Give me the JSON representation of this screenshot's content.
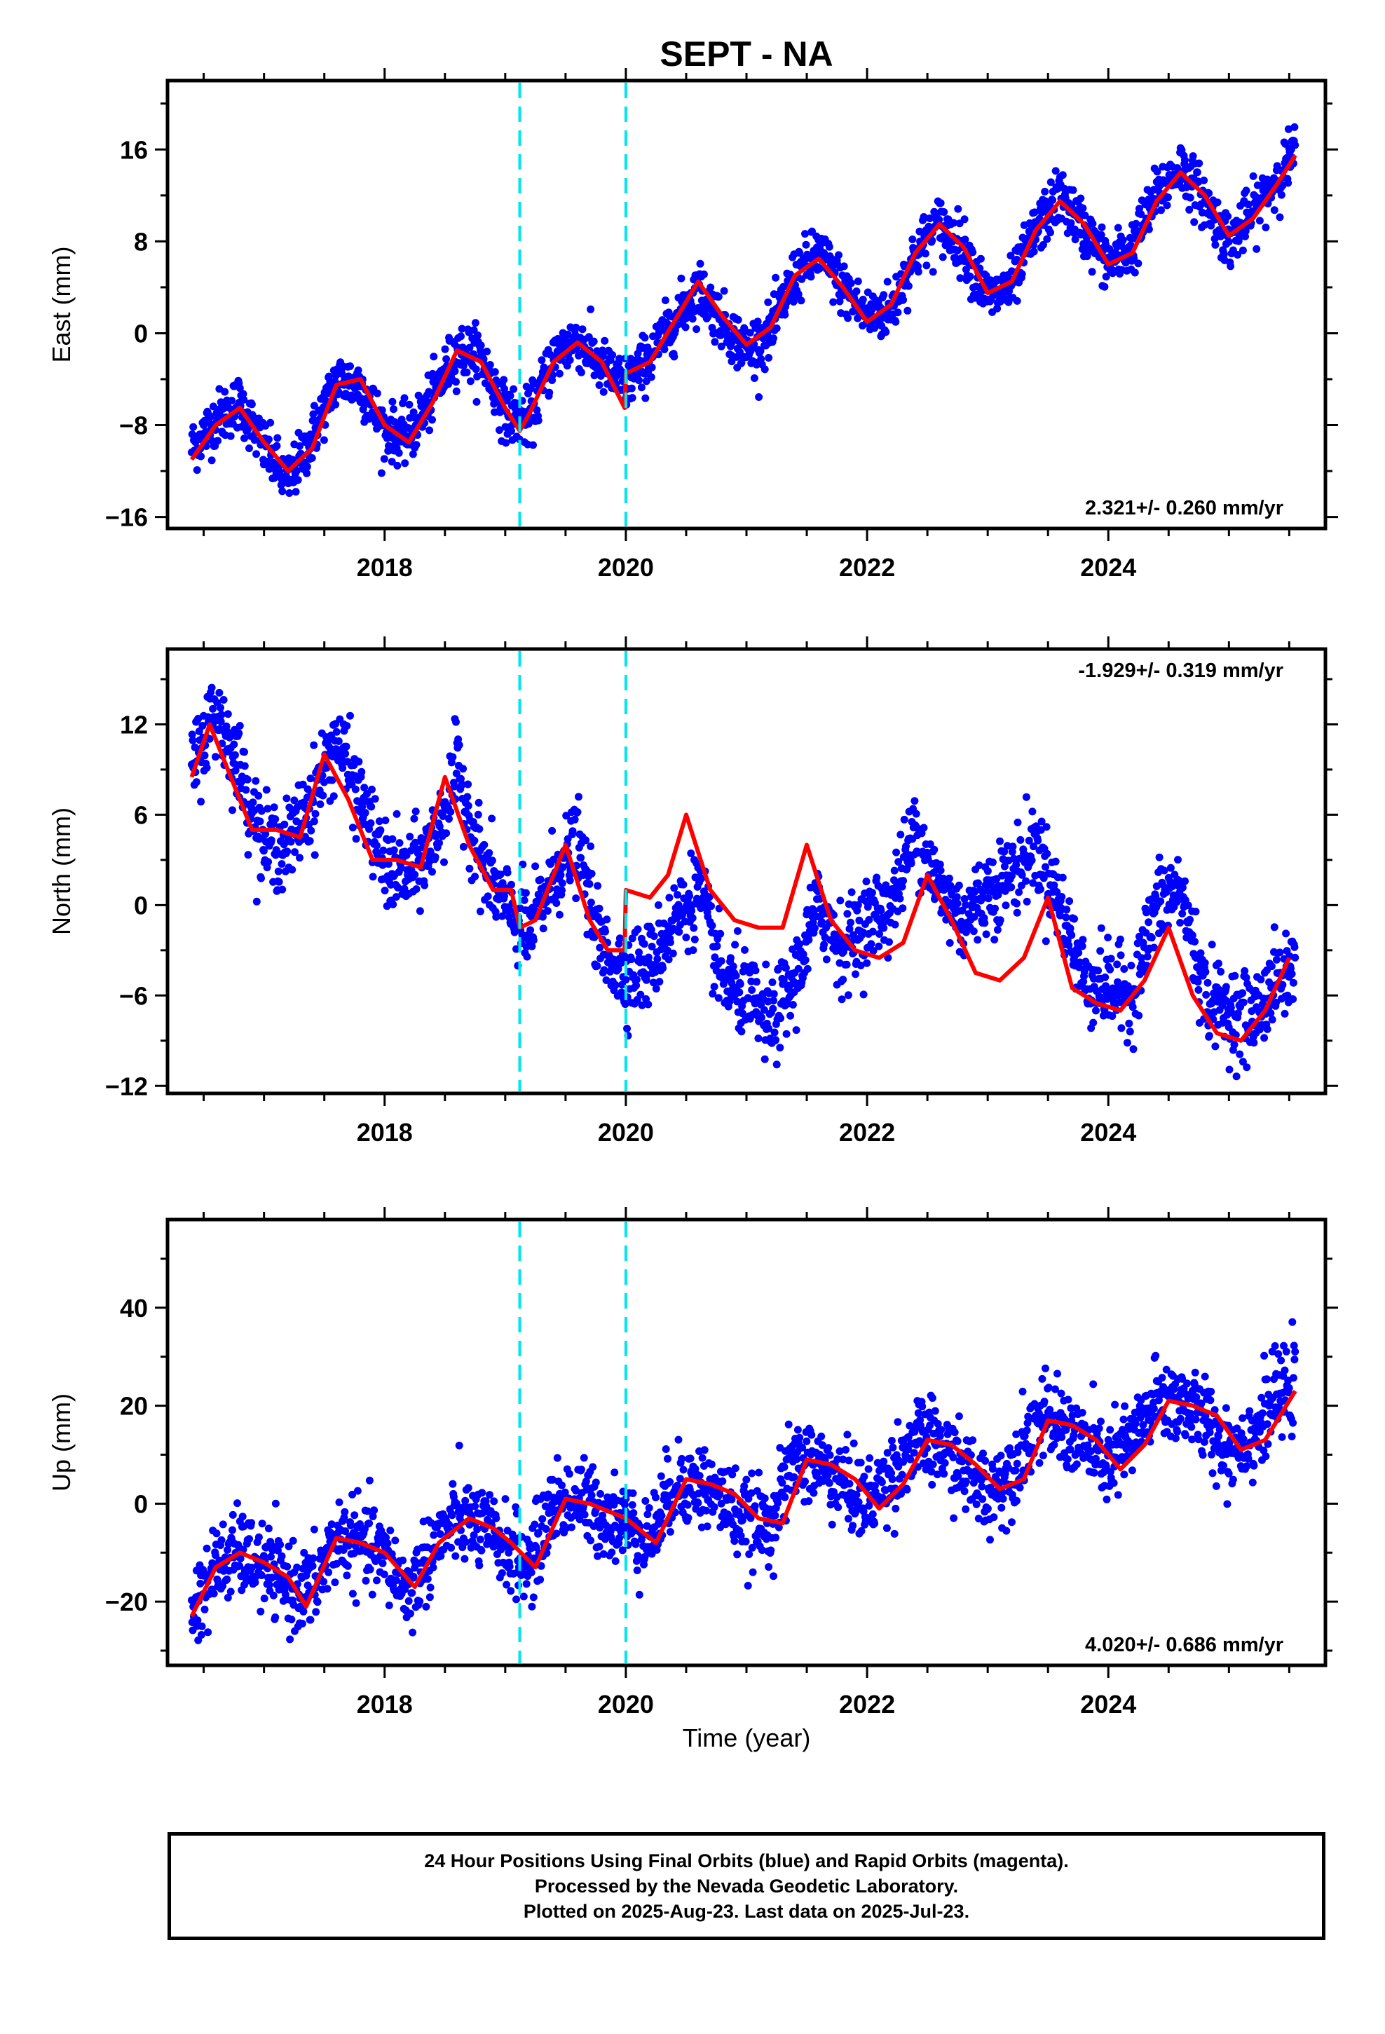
{
  "title": "SEPT - NA",
  "xlabel": "Time (year)",
  "caption": [
    "24 Hour Positions Using Final Orbits (blue) and Rapid Orbits (magenta).",
    "Processed by the Nevada Geodetic Laboratory.",
    "Plotted on 2025-Aug-23. Last data on 2025-Jul-23."
  ],
  "colors": {
    "data": "#0000ff",
    "model": "#ff0000",
    "events": "#00e5ee"
  },
  "chart_data": [
    {
      "type": "scatter",
      "ylabel": "East (mm)",
      "rate_label": "2.321+/- 0.260 mm/yr",
      "rate_position": "bottom-right",
      "xlim": [
        2016.2,
        2025.8
      ],
      "ylim": [
        -17,
        22
      ],
      "xticks": [
        2018,
        2020,
        2022,
        2024
      ],
      "yticks": [
        -16,
        -8,
        0,
        8,
        16
      ],
      "events": [
        2019.12,
        2020.0
      ],
      "model": {
        "x": [
          2016.4,
          2016.6,
          2016.8,
          2017.0,
          2017.2,
          2017.4,
          2017.6,
          2017.8,
          2018.0,
          2018.2,
          2018.4,
          2018.6,
          2018.8,
          2019.0,
          2019.12,
          2019.2,
          2019.4,
          2019.6,
          2019.8,
          2019.99,
          2020.0,
          2020.2,
          2020.4,
          2020.6,
          2020.8,
          2021.0,
          2021.2,
          2021.4,
          2021.6,
          2021.8,
          2022.0,
          2022.2,
          2022.4,
          2022.6,
          2022.8,
          2023.0,
          2023.2,
          2023.4,
          2023.6,
          2023.8,
          2024.0,
          2024.2,
          2024.4,
          2024.6,
          2024.8,
          2025.0,
          2025.2,
          2025.4,
          2025.55
        ],
        "y": [
          -11,
          -8,
          -6.5,
          -9.5,
          -12,
          -10,
          -4.5,
          -4,
          -8,
          -9.5,
          -6,
          -1.5,
          -2.5,
          -6.5,
          -8.5,
          -7,
          -2.5,
          -0.8,
          -2.5,
          -6.5,
          -3.5,
          -2.5,
          1,
          4.5,
          1.5,
          -1,
          0.5,
          5,
          6.5,
          4,
          1,
          2.5,
          7,
          9.5,
          7.5,
          3.5,
          4.5,
          9,
          11.5,
          9.5,
          6,
          7,
          11.5,
          14,
          12,
          8.5,
          10,
          13,
          15.5
        ]
      },
      "series": [
        {
          "name": "",
          "x": [
            2016.4,
            2016.6,
            2016.8,
            2017.0,
            2017.2,
            2017.4,
            2017.6,
            2017.8,
            2018.0,
            2018.2,
            2018.4,
            2018.6,
            2018.8,
            2019.0,
            2019.2,
            2019.4,
            2019.6,
            2019.8,
            2020.0,
            2020.2,
            2020.4,
            2020.6,
            2020.8,
            2021.0,
            2021.2,
            2021.4,
            2021.6,
            2021.8,
            2022.0,
            2022.2,
            2022.4,
            2022.6,
            2022.8,
            2023.0,
            2023.2,
            2023.4,
            2023.6,
            2023.8,
            2024.0,
            2024.2,
            2024.4,
            2024.6,
            2024.8,
            2025.0,
            2025.2,
            2025.4,
            2025.55
          ],
          "y": [
            -10,
            -7.5,
            -6,
            -10,
            -13,
            -9,
            -4,
            -4.5,
            -8.5,
            -9,
            -5.5,
            -1.5,
            -2,
            -7,
            -7.5,
            -2,
            -0.5,
            -3,
            -4.5,
            -2,
            1,
            4,
            1,
            -1.5,
            0,
            5,
            7,
            4,
            1.5,
            2,
            7,
            9.5,
            7.5,
            3,
            4,
            9,
            12,
            9,
            6,
            7.5,
            12,
            14.5,
            11.5,
            8,
            10.5,
            13.5,
            16
          ]
        }
      ]
    },
    {
      "type": "scatter",
      "ylabel": "North (mm)",
      "rate_label": "-1.929+/- 0.319 mm/yr",
      "rate_position": "top-right",
      "xlim": [
        2016.2,
        2025.8
      ],
      "ylim": [
        -12.5,
        17
      ],
      "xticks": [
        2018,
        2020,
        2022,
        2024
      ],
      "yticks": [
        -12,
        -6,
        0,
        6,
        12
      ],
      "events": [
        2019.12,
        2020.0
      ],
      "model": {
        "x": [
          2016.4,
          2016.55,
          2016.7,
          2016.9,
          2017.1,
          2017.3,
          2017.5,
          2017.7,
          2017.9,
          2018.1,
          2018.3,
          2018.5,
          2018.7,
          2018.9,
          2019.05,
          2019.12,
          2019.25,
          2019.5,
          2019.7,
          2019.85,
          2019.99,
          2020.0,
          2020.2,
          2020.35,
          2020.5,
          2020.7,
          2020.9,
          2021.1,
          2021.3,
          2021.5,
          2021.7,
          2021.9,
          2022.1,
          2022.3,
          2022.5,
          2022.7,
          2022.9,
          2023.1,
          2023.3,
          2023.5,
          2023.7,
          2023.9,
          2024.1,
          2024.3,
          2024.5,
          2024.7,
          2024.9,
          2025.1,
          2025.3,
          2025.5
        ],
        "y": [
          8.5,
          12,
          9,
          5,
          5,
          4.5,
          10,
          7,
          3,
          3,
          2.5,
          8.5,
          4,
          1,
          1,
          -1.5,
          -1,
          4,
          -1,
          -3,
          -3,
          1,
          0.5,
          2,
          6,
          1,
          -1,
          -1.5,
          -1.5,
          4,
          -1,
          -3,
          -3.5,
          -2.5,
          2,
          -1,
          -4.5,
          -5,
          -3.5,
          0.5,
          -5.5,
          -6.5,
          -7,
          -5,
          -1.5,
          -6,
          -8.5,
          -9,
          -7,
          -3.5
        ]
      },
      "series": [
        {
          "name": "",
          "x": [
            2016.4,
            2016.6,
            2016.8,
            2017.0,
            2017.2,
            2017.4,
            2017.6,
            2017.8,
            2018.0,
            2018.2,
            2018.4,
            2018.6,
            2018.8,
            2019.0,
            2019.2,
            2019.4,
            2019.6,
            2019.8,
            2020.0,
            2020.2,
            2020.4,
            2020.6,
            2020.8,
            2021.0,
            2021.2,
            2021.4,
            2021.6,
            2021.8,
            2022.0,
            2022.2,
            2022.4,
            2022.6,
            2022.8,
            2023.0,
            2023.2,
            2023.4,
            2023.6,
            2023.8,
            2024.0,
            2024.2,
            2024.4,
            2024.6,
            2024.8,
            2025.0,
            2025.2,
            2025.4,
            2025.55
          ],
          "y": [
            9,
            13,
            9,
            4,
            4,
            7,
            11,
            7,
            2.5,
            2,
            4,
            9,
            3,
            0,
            -2,
            2,
            4,
            -3,
            -4.5,
            -4,
            -1,
            1,
            -5,
            -6,
            -8,
            -5,
            0,
            -3,
            -1,
            0,
            5,
            1,
            -1,
            1,
            2,
            4,
            0,
            -5,
            -5.5,
            -6,
            0,
            1,
            -6,
            -7,
            -7.5,
            -5,
            -4
          ]
        }
      ]
    },
    {
      "type": "scatter",
      "ylabel": "Up (mm)",
      "rate_label": "4.020+/- 0.686 mm/yr",
      "rate_position": "bottom-right",
      "xlim": [
        2016.2,
        2025.8
      ],
      "ylim": [
        -33,
        58
      ],
      "xticks": [
        2018,
        2020,
        2022,
        2024
      ],
      "yticks": [
        -20,
        0,
        20,
        40
      ],
      "events": [
        2019.12,
        2020.0
      ],
      "model": {
        "x": [
          2016.4,
          2016.6,
          2016.8,
          2017.0,
          2017.2,
          2017.35,
          2017.6,
          2017.8,
          2018.0,
          2018.25,
          2018.45,
          2018.7,
          2018.9,
          2019.05,
          2019.25,
          2019.5,
          2019.7,
          2019.9,
          2020.0,
          2020.25,
          2020.5,
          2020.7,
          2020.9,
          2021.1,
          2021.3,
          2021.5,
          2021.7,
          2021.9,
          2022.1,
          2022.3,
          2022.5,
          2022.7,
          2022.9,
          2023.1,
          2023.3,
          2023.5,
          2023.7,
          2023.9,
          2024.1,
          2024.3,
          2024.5,
          2024.7,
          2024.9,
          2025.1,
          2025.3,
          2025.55
        ],
        "y": [
          -23,
          -13,
          -10,
          -12,
          -15,
          -21,
          -7,
          -8,
          -10,
          -17,
          -8,
          -3,
          -5,
          -8,
          -13,
          1,
          0,
          -2,
          -3,
          -8,
          5,
          4,
          2,
          -3,
          -4,
          9,
          8,
          5,
          -1,
          4,
          13,
          12,
          8,
          3,
          5,
          17,
          16,
          13,
          7,
          12,
          21,
          20,
          18,
          11,
          13,
          23
        ]
      },
      "series": [
        {
          "name": "",
          "x": [
            2016.4,
            2016.6,
            2016.8,
            2017.0,
            2017.2,
            2017.4,
            2017.6,
            2017.8,
            2018.0,
            2018.2,
            2018.4,
            2018.6,
            2018.8,
            2019.0,
            2019.2,
            2019.4,
            2019.6,
            2019.8,
            2020.0,
            2020.2,
            2020.4,
            2020.6,
            2020.8,
            2021.0,
            2021.2,
            2021.4,
            2021.6,
            2021.8,
            2022.0,
            2022.2,
            2022.4,
            2022.6,
            2022.8,
            2023.0,
            2023.2,
            2023.4,
            2023.6,
            2023.8,
            2024.0,
            2024.2,
            2024.4,
            2024.6,
            2024.8,
            2025.0,
            2025.2,
            2025.4,
            2025.55
          ],
          "y": [
            -22,
            -13,
            -10,
            -13,
            -17,
            -18,
            -7,
            -8,
            -11,
            -18,
            -9,
            -3,
            -5,
            -9,
            -13,
            0,
            1,
            -2,
            -4,
            -7,
            4,
            4,
            1,
            -4,
            -4,
            9,
            8,
            4,
            0,
            6,
            13,
            12,
            7,
            2,
            7,
            17,
            16,
            12,
            8,
            13,
            21,
            21,
            17,
            11,
            14,
            22,
            24
          ]
        }
      ]
    }
  ]
}
